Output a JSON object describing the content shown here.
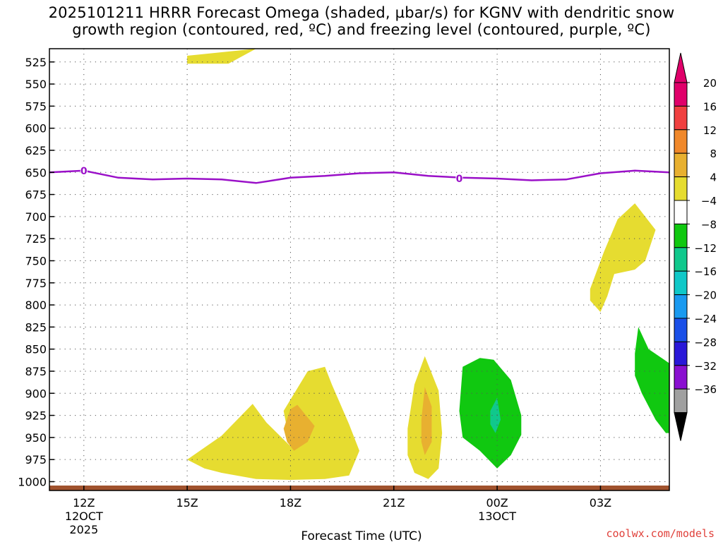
{
  "chart_data": {
    "type": "heatmap",
    "title_line1": "2025101211 HRRR Forecast Omega (shaded, µbar/s) for KGNV with dendritic snow",
    "title_line2": "growth region (contoured, red, ºC) and freezing level (contoured, purple, ºC)",
    "xlabel": "Forecast Time (UTC)",
    "x_ticks": [
      {
        "hour": 0,
        "label": "12Z",
        "sub": [
          "12OCT",
          "2025"
        ]
      },
      {
        "hour": 3,
        "label": "15Z",
        "sub": []
      },
      {
        "hour": 6,
        "label": "18Z",
        "sub": []
      },
      {
        "hour": 9,
        "label": "21Z",
        "sub": []
      },
      {
        "hour": 12,
        "label": "00Z",
        "sub": [
          "13OCT"
        ]
      },
      {
        "hour": 15,
        "label": "03Z",
        "sub": []
      }
    ],
    "xlim_hours": [
      -1,
      17
    ],
    "y_ticks": [
      525,
      550,
      575,
      600,
      625,
      650,
      675,
      700,
      725,
      750,
      775,
      800,
      825,
      850,
      875,
      900,
      925,
      950,
      975,
      1000
    ],
    "ylim_hPa": [
      510,
      1010
    ],
    "colorbar": {
      "labels": [
        "20",
        "16",
        "12",
        "8",
        "4",
        "−4",
        "−8",
        "−12",
        "−16",
        "−20",
        "−24",
        "−28",
        "−32",
        "−36"
      ],
      "colors": [
        "#e0006a",
        "#f04040",
        "#f0882a",
        "#e8b030",
        "#e6dc30",
        "#ffffff",
        "#10c810",
        "#10c88c",
        "#10c8c8",
        "#1a9af0",
        "#1a50e8",
        "#2a18d8",
        "#8a10d0",
        "#a0a0a0",
        "#000000"
      ],
      "top_arrow_color": "#e0006a",
      "bottom_arrow_color": "#000000"
    },
    "freezing_level": {
      "color": "#9a10c8",
      "contour_label": "0",
      "points": [
        [
          -1,
          650
        ],
        [
          0,
          648
        ],
        [
          0.5,
          652
        ],
        [
          1,
          656
        ],
        [
          2,
          658
        ],
        [
          3,
          657
        ],
        [
          4,
          658
        ],
        [
          5,
          662
        ],
        [
          6,
          656
        ],
        [
          7,
          654
        ],
        [
          8,
          651
        ],
        [
          9,
          650
        ],
        [
          10,
          654
        ],
        [
          11,
          656
        ],
        [
          12,
          657
        ],
        [
          13,
          659
        ],
        [
          14,
          658
        ],
        [
          15,
          651
        ],
        [
          16,
          648
        ],
        [
          17,
          650
        ]
      ],
      "label_positions": [
        [
          0,
          648
        ],
        [
          10.9,
          657
        ]
      ]
    },
    "omega_regions": [
      {
        "level": "4-8",
        "points": [
          [
            3,
            518
          ],
          [
            5.0,
            510
          ],
          [
            4.2,
            527
          ],
          [
            3,
            527
          ]
        ]
      },
      {
        "level": "4-8",
        "points": [
          [
            3.0,
            975
          ],
          [
            4.0,
            948
          ],
          [
            4.9,
            912
          ],
          [
            5.3,
            933
          ],
          [
            6.0,
            960
          ],
          [
            5.8,
            920
          ],
          [
            6.5,
            875
          ],
          [
            7.0,
            870
          ],
          [
            7.2,
            890
          ],
          [
            7.7,
            935
          ],
          [
            8.0,
            965
          ],
          [
            7.7,
            993
          ],
          [
            7.0,
            997
          ],
          [
            6.0,
            998
          ],
          [
            5.0,
            997
          ],
          [
            4.0,
            990
          ],
          [
            3.5,
            985
          ]
        ]
      },
      {
        "level": "8-12",
        "points": [
          [
            5.8,
            940
          ],
          [
            6.0,
            918
          ],
          [
            6.2,
            913
          ],
          [
            6.7,
            937
          ],
          [
            6.5,
            955
          ],
          [
            6.1,
            965
          ],
          [
            5.9,
            955
          ]
        ]
      },
      {
        "level": "4-8",
        "points": [
          [
            9.4,
            940
          ],
          [
            9.6,
            890
          ],
          [
            9.9,
            858
          ],
          [
            10.3,
            897
          ],
          [
            10.4,
            945
          ],
          [
            10.3,
            985
          ],
          [
            10.0,
            997
          ],
          [
            9.6,
            990
          ],
          [
            9.4,
            970
          ]
        ]
      },
      {
        "level": "8-12",
        "points": [
          [
            9.8,
            930
          ],
          [
            9.9,
            893
          ],
          [
            10.1,
            915
          ],
          [
            10.1,
            955
          ],
          [
            9.9,
            970
          ],
          [
            9.8,
            955
          ]
        ]
      },
      {
        "level": "-8--4",
        "points": [
          [
            11.0,
            870
          ],
          [
            11.5,
            860
          ],
          [
            11.9,
            862
          ],
          [
            12.4,
            885
          ],
          [
            12.7,
            925
          ],
          [
            12.7,
            947
          ],
          [
            12.4,
            970
          ],
          [
            12.0,
            985
          ],
          [
            11.5,
            965
          ],
          [
            11.0,
            950
          ],
          [
            10.9,
            920
          ]
        ]
      },
      {
        "level": "-12--8",
        "points": [
          [
            11.8,
            920
          ],
          [
            12.0,
            905
          ],
          [
            12.1,
            930
          ],
          [
            11.95,
            945
          ],
          [
            11.8,
            935
          ]
        ]
      },
      {
        "level": "4-8",
        "points": [
          [
            14.7,
            782
          ],
          [
            15.1,
            740
          ],
          [
            15.5,
            703
          ],
          [
            16.0,
            685
          ],
          [
            16.6,
            715
          ],
          [
            16.3,
            750
          ],
          [
            16.0,
            760
          ],
          [
            15.4,
            765
          ],
          [
            15.2,
            790
          ],
          [
            15.0,
            808
          ],
          [
            14.7,
            795
          ]
        ]
      },
      {
        "level": "-8--4",
        "points": [
          [
            16.0,
            855
          ],
          [
            16.1,
            825
          ],
          [
            16.4,
            850
          ],
          [
            17.0,
            866
          ],
          [
            17.0,
            945
          ],
          [
            16.9,
            945
          ],
          [
            16.6,
            930
          ],
          [
            16.2,
            900
          ],
          [
            16.0,
            880
          ]
        ]
      }
    ],
    "ground": {
      "color": "#a0522d"
    }
  },
  "credit": "coolwx.com/models"
}
